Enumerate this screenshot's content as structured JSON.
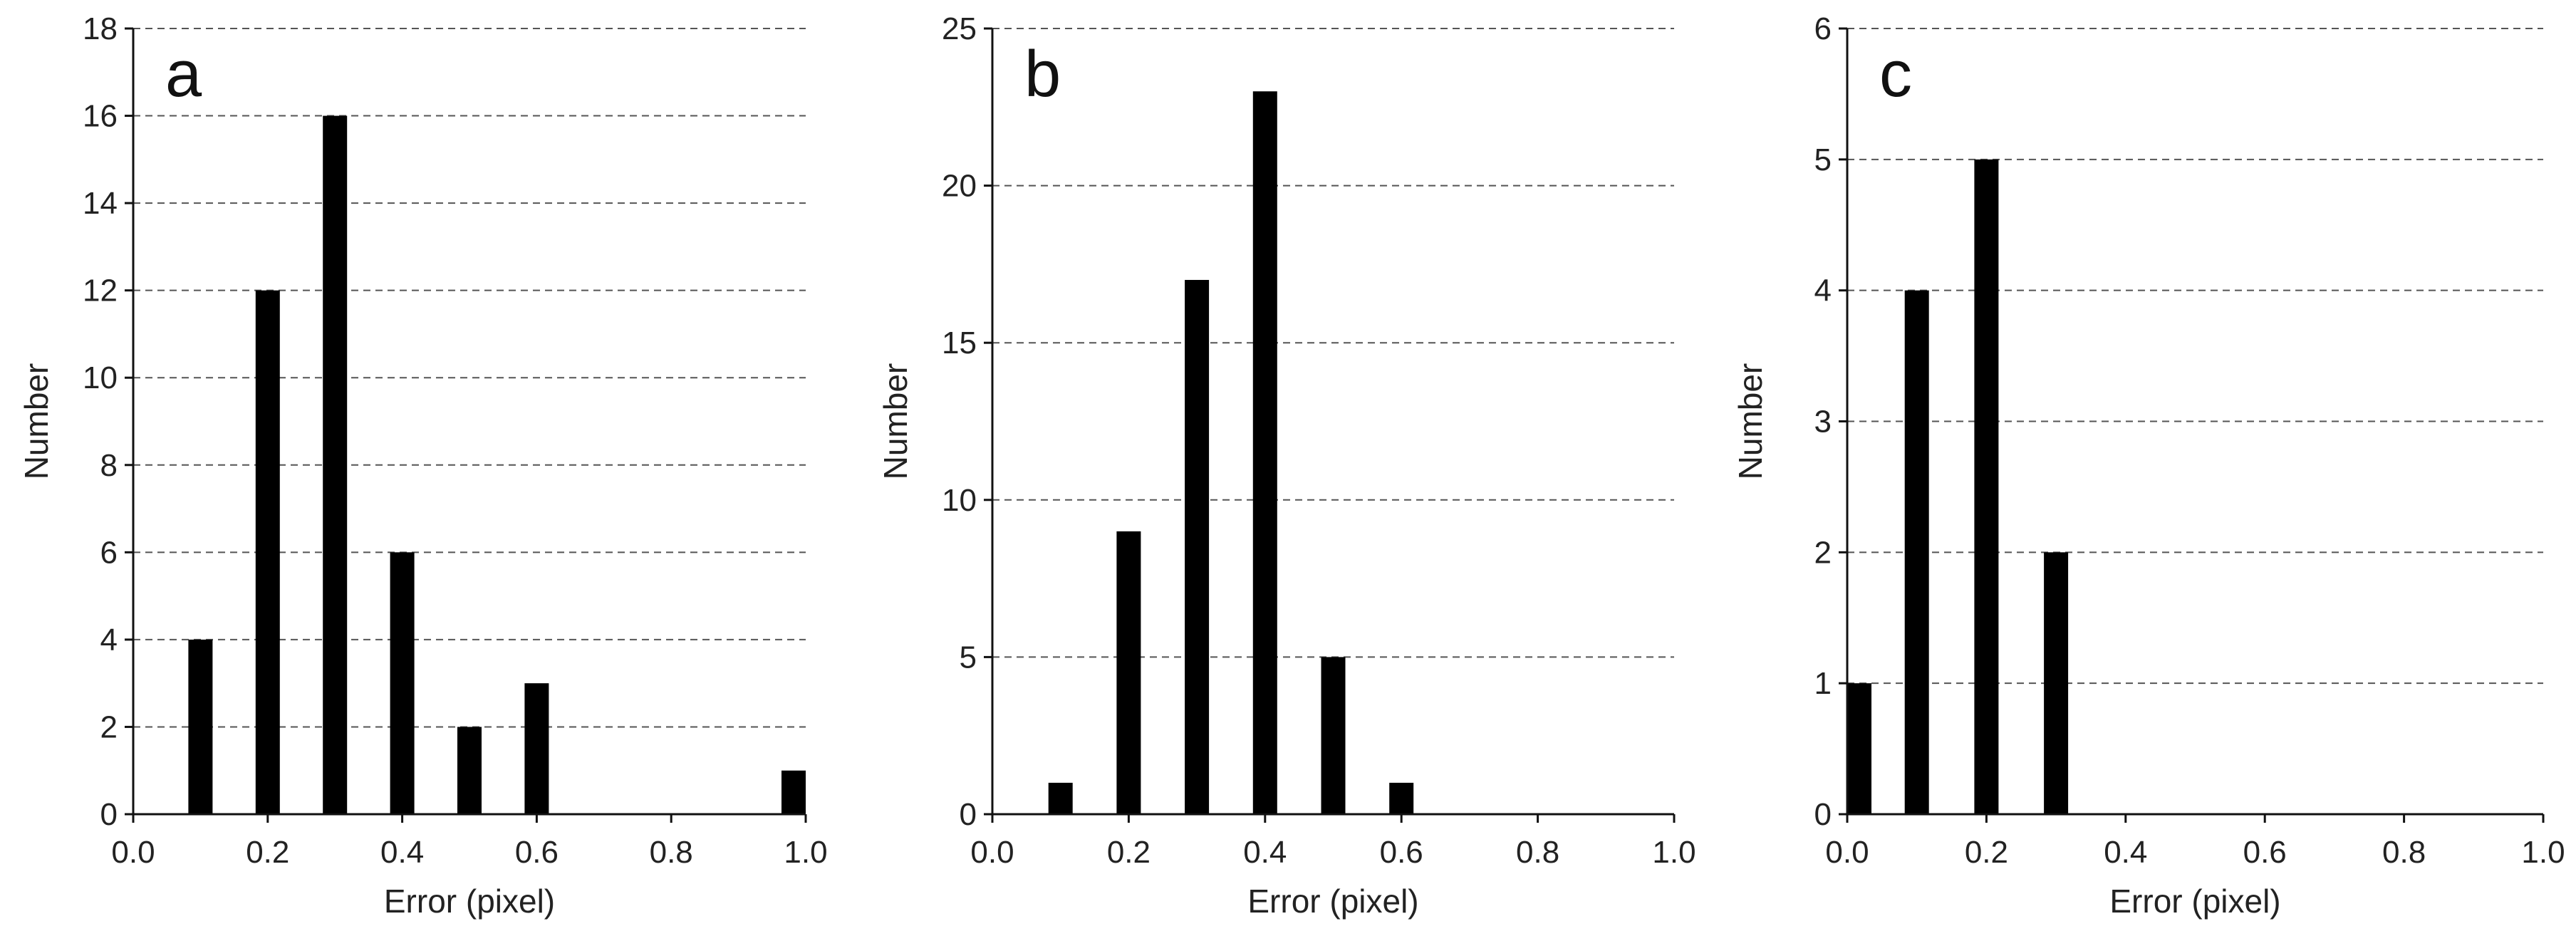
{
  "chart_data": [
    {
      "type": "bar",
      "panel_label": "a",
      "xlabel": "Error (pixel)",
      "ylabel": "Number",
      "xlim": [
        0.0,
        1.0
      ],
      "ylim": [
        0,
        18
      ],
      "xticks": [
        "0.0",
        "0.2",
        "0.4",
        "0.6",
        "0.8",
        "1.0"
      ],
      "yticks": [
        "0",
        "2",
        "4",
        "6",
        "8",
        "10",
        "12",
        "14",
        "16",
        "18"
      ],
      "grid": "horizontal dashed",
      "x": [
        0.1,
        0.2,
        0.3,
        0.4,
        0.5,
        0.6,
        1.0
      ],
      "values": [
        4,
        12,
        16,
        6,
        2,
        3,
        1
      ],
      "bar_color": "#000000"
    },
    {
      "type": "bar",
      "panel_label": "b",
      "xlabel": "Error (pixel)",
      "ylabel": "Number",
      "xlim": [
        0.0,
        1.0
      ],
      "ylim": [
        0,
        25
      ],
      "xticks": [
        "0.0",
        "0.2",
        "0.4",
        "0.6",
        "0.8",
        "1.0"
      ],
      "yticks": [
        "0",
        "5",
        "10",
        "15",
        "20",
        "25"
      ],
      "grid": "horizontal dashed",
      "x": [
        0.1,
        0.2,
        0.3,
        0.4,
        0.5,
        0.6
      ],
      "values": [
        1,
        9,
        17,
        23,
        5,
        1
      ],
      "bar_color": "#000000"
    },
    {
      "type": "bar",
      "panel_label": "c",
      "xlabel": "Error (pixel)",
      "ylabel": "Number",
      "xlim": [
        0.0,
        1.0
      ],
      "ylim": [
        0,
        6
      ],
      "xticks": [
        "0.0",
        "0.2",
        "0.4",
        "0.6",
        "0.8",
        "1.0"
      ],
      "yticks": [
        "0",
        "1",
        "2",
        "3",
        "4",
        "5",
        "6"
      ],
      "grid": "horizontal dashed",
      "x": [
        0.0,
        0.1,
        0.2,
        0.3
      ],
      "values": [
        1,
        4,
        5,
        2
      ],
      "bar_color": "#000000"
    }
  ]
}
